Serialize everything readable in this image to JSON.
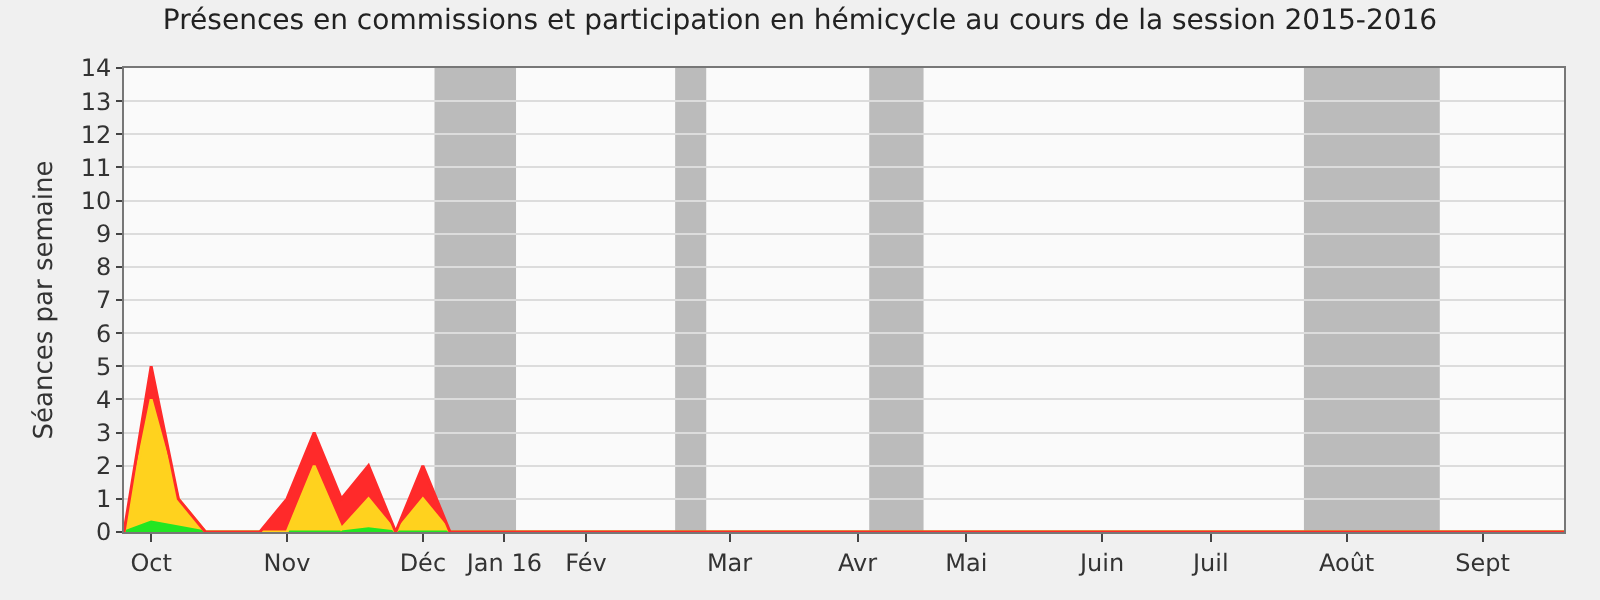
{
  "chart_data": {
    "type": "area",
    "title": "Présences en commissions et participation en hémicycle au cours de la session 2015-2016",
    "ylabel": "Séances par semaine",
    "stacked": true,
    "grid": "y",
    "x": [
      "2015-09-28",
      "2015-10-05",
      "2015-10-12",
      "2015-10-19",
      "2015-10-26",
      "2015-11-02",
      "2015-11-09",
      "2015-11-16",
      "2015-11-23",
      "2015-11-30",
      "2015-12-07",
      "2015-12-14",
      "2015-12-21",
      "2015-12-28",
      "2016-01-04",
      "2016-01-11",
      "2016-01-18",
      "2016-01-25",
      "2016-02-01",
      "2016-02-08",
      "2016-02-15",
      "2016-02-22",
      "2016-02-29",
      "2016-03-07",
      "2016-03-14",
      "2016-03-21",
      "2016-03-28",
      "2016-04-04",
      "2016-04-11",
      "2016-04-18",
      "2016-04-25",
      "2016-05-02",
      "2016-05-09",
      "2016-05-16",
      "2016-05-23",
      "2016-05-30",
      "2016-06-06",
      "2016-06-13",
      "2016-06-20",
      "2016-06-27",
      "2016-07-04",
      "2016-07-11",
      "2016-07-18",
      "2016-07-25",
      "2016-08-01",
      "2016-08-08",
      "2016-08-15",
      "2016-08-22",
      "2016-08-29",
      "2016-09-05",
      "2016-09-12",
      "2016-09-19",
      "2016-09-26",
      "2016-10-03"
    ],
    "xlim": [
      "2015-09-28",
      "2016-10-03"
    ],
    "xticks": [
      {
        "value": "2015-10-05",
        "label": "Oct"
      },
      {
        "value": "2015-11-09",
        "label": "Nov"
      },
      {
        "value": "2015-12-14",
        "label": "Déc"
      },
      {
        "value": "2016-01-04",
        "label": "Jan 16"
      },
      {
        "value": "2016-01-25",
        "label": "Fév"
      },
      {
        "value": "2016-03-02",
        "label": "Mar"
      },
      {
        "value": "2016-04-04",
        "label": "Avr"
      },
      {
        "value": "2016-05-02",
        "label": "Mai"
      },
      {
        "value": "2016-06-06",
        "label": "Juin"
      },
      {
        "value": "2016-07-04",
        "label": "Juil"
      },
      {
        "value": "2016-08-08",
        "label": "Août"
      },
      {
        "value": "2016-09-12",
        "label": "Sept"
      }
    ],
    "ylim": [
      0,
      14
    ],
    "yticks": [
      0,
      1,
      2,
      3,
      4,
      5,
      6,
      7,
      8,
      9,
      10,
      11,
      12,
      13,
      14
    ],
    "bands": [
      {
        "axis": "x",
        "from": "2015-12-17",
        "to": "2016-01-07",
        "color": "#b4b4b4"
      },
      {
        "axis": "x",
        "from": "2016-02-17",
        "to": "2016-02-25",
        "color": "#b4b4b4"
      },
      {
        "axis": "x",
        "from": "2016-04-07",
        "to": "2016-04-21",
        "color": "#b4b4b4"
      },
      {
        "axis": "x",
        "from": "2016-07-28",
        "to": "2016-09-01",
        "color": "#b4b4b4"
      }
    ],
    "series": [
      {
        "color": "#22e622",
        "values": [
          0,
          0.3,
          0.15,
          0,
          0,
          0,
          0,
          0,
          0,
          0.1,
          0,
          0,
          0,
          0,
          0,
          0,
          0,
          0,
          0,
          0,
          0,
          0,
          0,
          0,
          0,
          0,
          0,
          0,
          0,
          0,
          0,
          0,
          0,
          0,
          0,
          0,
          0,
          0,
          0,
          0,
          0,
          0,
          0,
          0,
          0,
          0,
          0,
          0,
          0,
          0,
          0,
          0,
          0,
          0
        ]
      },
      {
        "color": "#ffd21e",
        "values": [
          0,
          3.7,
          0.85,
          0,
          0,
          0,
          0,
          2,
          0.1,
          0.9,
          0,
          1,
          0,
          0,
          0,
          0,
          0,
          0,
          0,
          0,
          0,
          0,
          0,
          0,
          0,
          0,
          0,
          0,
          0,
          0,
          0,
          0,
          0,
          0,
          0,
          0,
          0,
          0,
          0,
          0,
          0,
          0,
          0,
          0,
          0,
          0,
          0,
          0,
          0,
          0,
          0,
          0,
          0,
          0
        ]
      },
      {
        "color": "#ff2a2a",
        "values": [
          0,
          1,
          0,
          0,
          0,
          0,
          1,
          1,
          0.9,
          1,
          0,
          1,
          0,
          0,
          0,
          0,
          0,
          0,
          0,
          0,
          0,
          0,
          0,
          0,
          0,
          0,
          0,
          0,
          0,
          0,
          0,
          0,
          0,
          0,
          0,
          0,
          0,
          0,
          0,
          0,
          0,
          0,
          0,
          0,
          0,
          0,
          0,
          0,
          0,
          0,
          0,
          0,
          0,
          0
        ]
      }
    ]
  }
}
